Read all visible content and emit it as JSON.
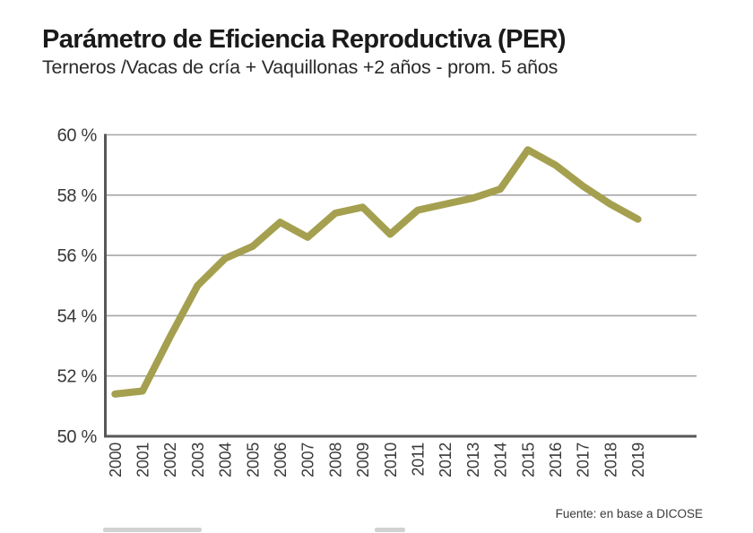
{
  "header": {
    "title": "Parámetro de Eficiencia Reproductiva (PER)",
    "subtitle": "Terneros /Vacas de cría + Vaquillonas +2 años - prom. 5 años"
  },
  "footer": {
    "source": "Fuente: en base a DICOSE"
  },
  "chart_data": {
    "type": "line",
    "title": "Parámetro de Eficiencia Reproductiva (PER)",
    "subtitle": "Terneros /Vacas de cría + Vaquillonas +2 años - prom. 5 años",
    "categories": [
      "2000",
      "2001",
      "2002",
      "2003",
      "2004",
      "2005",
      "2006",
      "2007",
      "2008",
      "2009",
      "2010",
      "2011",
      "2012",
      "2013",
      "2014",
      "2015",
      "2016",
      "2017",
      "2018",
      "2019"
    ],
    "series": [
      {
        "name": "PER (Terneros / Vacas de cría + Vaquillonas +2 años, prom. 5 años)",
        "values": [
          51.4,
          51.5,
          53.3,
          55.0,
          55.9,
          56.3,
          57.1,
          56.6,
          57.4,
          57.6,
          56.7,
          57.5,
          57.7,
          57.9,
          58.2,
          59.5,
          59.0,
          58.3,
          57.7,
          57.2
        ]
      }
    ],
    "xlabel": "",
    "ylabel": "",
    "ylim": [
      50,
      60
    ],
    "yticks": [
      50,
      52,
      54,
      56,
      58,
      60
    ],
    "ytick_suffix": " %",
    "grid": "horizontal-only",
    "legend": "none",
    "line_color": "#a5a04f",
    "axis_color": "#58585a",
    "gridline_color": "#a6a6a6",
    "tick_label_color": "#383838",
    "source": "Fuente: en base a DICOSE"
  }
}
